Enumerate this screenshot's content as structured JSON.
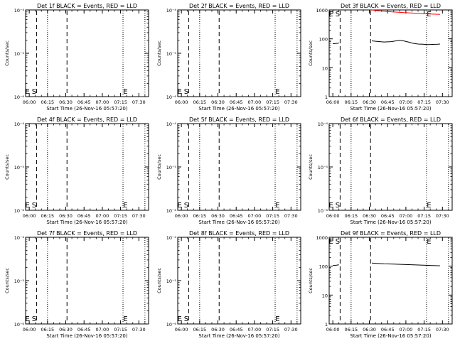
{
  "chart_data": [
    {
      "type": "line",
      "title": "Det 1f BLACK = Events, RED = LLD",
      "scale": "log-small",
      "ylabel": "Counts/sec",
      "xlabel": "Start Time (26-Nov-16 05:57:20)",
      "marker_S": "S",
      "marker_E": "E",
      "series": []
    },
    {
      "type": "line",
      "title": "Det 2f BLACK = Events, RED = LLD",
      "scale": "log-small",
      "ylabel": "Counts/sec",
      "xlabel": "Start Time (26-Nov-16 05:57:20)",
      "marker_S": "S",
      "marker_E": "E",
      "series": []
    },
    {
      "type": "line",
      "title": "Det 3f BLACK = Events, RED = LLD",
      "scale": "log-large",
      "ylabel": "Counts/sec",
      "xlabel": "Start Time (26-Nov-16 05:57:20)",
      "marker_S": "S",
      "marker_E": "E",
      "series": [
        {
          "color": "#000000",
          "segments": [
            [
              [
                0,
                68
              ],
              [
                4,
                70
              ],
              [
                5,
                72
              ]
            ],
            [
              [
                32,
                85
              ],
              [
                36,
                82
              ],
              [
                42,
                78
              ],
              [
                48,
                80
              ],
              [
                52,
                85
              ],
              [
                55,
                88
              ],
              [
                58,
                85
              ],
              [
                62,
                78
              ],
              [
                66,
                70
              ],
              [
                70,
                66
              ],
              [
                74,
                65
              ],
              [
                78,
                63
              ],
              [
                82,
                64
              ],
              [
                86,
                65
              ],
              [
                88,
                66
              ]
            ]
          ]
        },
        {
          "color": "#ff0000",
          "segments": [
            [
              [
                32,
                1000
              ],
              [
                36,
                950
              ],
              [
                42,
                900
              ],
              [
                50,
                850
              ],
              [
                60,
                800
              ],
              [
                70,
                760
              ],
              [
                80,
                720
              ],
              [
                88,
                700
              ]
            ]
          ]
        }
      ]
    },
    {
      "type": "line",
      "title": "Det 4f BLACK = Events, RED = LLD",
      "scale": "log-small",
      "ylabel": "Counts/sec",
      "xlabel": "Start Time (26-Nov-16 05:57:20)",
      "marker_S": "S",
      "marker_E": "E",
      "series": []
    },
    {
      "type": "line",
      "title": "Det 5f BLACK = Events, RED = LLD",
      "scale": "log-small",
      "ylabel": "Counts/sec",
      "xlabel": "Start Time (26-Nov-16 05:57:20)",
      "marker_S": "S",
      "marker_E": "E",
      "series": []
    },
    {
      "type": "line",
      "title": "Det 6f BLACK = Events, RED = LLD",
      "scale": "log-small",
      "ylabel": "Counts/sec",
      "xlabel": "Start Time (26-Nov-16 05:57:20)",
      "marker_S": "S",
      "marker_E": "E",
      "series": []
    },
    {
      "type": "line",
      "title": "Det 7f BLACK = Events, RED = LLD",
      "scale": "log-small",
      "ylabel": "Counts/sec",
      "xlabel": "Start Time (26-Nov-16 05:57:20)",
      "marker_S": "S",
      "marker_E": "E",
      "series": []
    },
    {
      "type": "line",
      "title": "Det 8f BLACK = Events, RED = LLD",
      "scale": "log-small",
      "ylabel": "Counts/sec",
      "xlabel": "Start Time (26-Nov-16 05:57:20)",
      "marker_S": "S",
      "marker_E": "E",
      "series": []
    },
    {
      "type": "line",
      "title": "Det 9f BLACK = Events, RED = LLD",
      "scale": "log-large",
      "ylabel": "Counts/sec",
      "xlabel": "Start Time (26-Nov-16 05:57:20)",
      "marker_S": "S",
      "marker_E": "E",
      "series": [
        {
          "color": "#000000",
          "segments": [
            [
              [
                0,
                105
              ],
              [
                3,
                108
              ],
              [
                5,
                112
              ]
            ],
            [
              [
                32,
                128
              ],
              [
                36,
                125
              ],
              [
                42,
                120
              ],
              [
                50,
                118
              ],
              [
                58,
                115
              ],
              [
                66,
                112
              ],
              [
                74,
                108
              ],
              [
                82,
                105
              ],
              [
                88,
                103
              ]
            ]
          ]
        }
      ]
    }
  ],
  "axes": {
    "x_ticks": [
      {
        "min": 0,
        "label": "06:00"
      },
      {
        "min": 15,
        "label": "06:15"
      },
      {
        "min": 30,
        "label": "06:30"
      },
      {
        "min": 45,
        "label": "06:45"
      },
      {
        "min": 60,
        "label": "07:00"
      },
      {
        "min": 75,
        "label": "07:15"
      },
      {
        "min": 90,
        "label": "07:30"
      }
    ],
    "x_range_min": [
      -3,
      98
    ],
    "log_small": {
      "ylim": [
        1e-06,
        0.0001
      ],
      "ticks": [
        {
          "v": 0.0001,
          "label": "10⁻⁴"
        },
        {
          "v": 1e-05,
          "label": "10⁻⁵"
        },
        {
          "v": 1e-06,
          "label": "10⁻⁶"
        }
      ]
    },
    "log_large": {
      "ylim": [
        1,
        1000
      ],
      "ticks": [
        {
          "v": 1000,
          "label": "1000"
        },
        {
          "v": 100,
          "label": "100"
        },
        {
          "v": 10,
          "label": "10"
        },
        {
          "v": 1,
          "label": "1"
        }
      ]
    }
  },
  "markers": {
    "E_start_min": -1.5,
    "S_min": 4,
    "dash1_min": 6,
    "dash2_min": 31,
    "dot1_min": 15,
    "dot2_min": 77,
    "dot3_min": 95,
    "E_end_min": 79
  }
}
